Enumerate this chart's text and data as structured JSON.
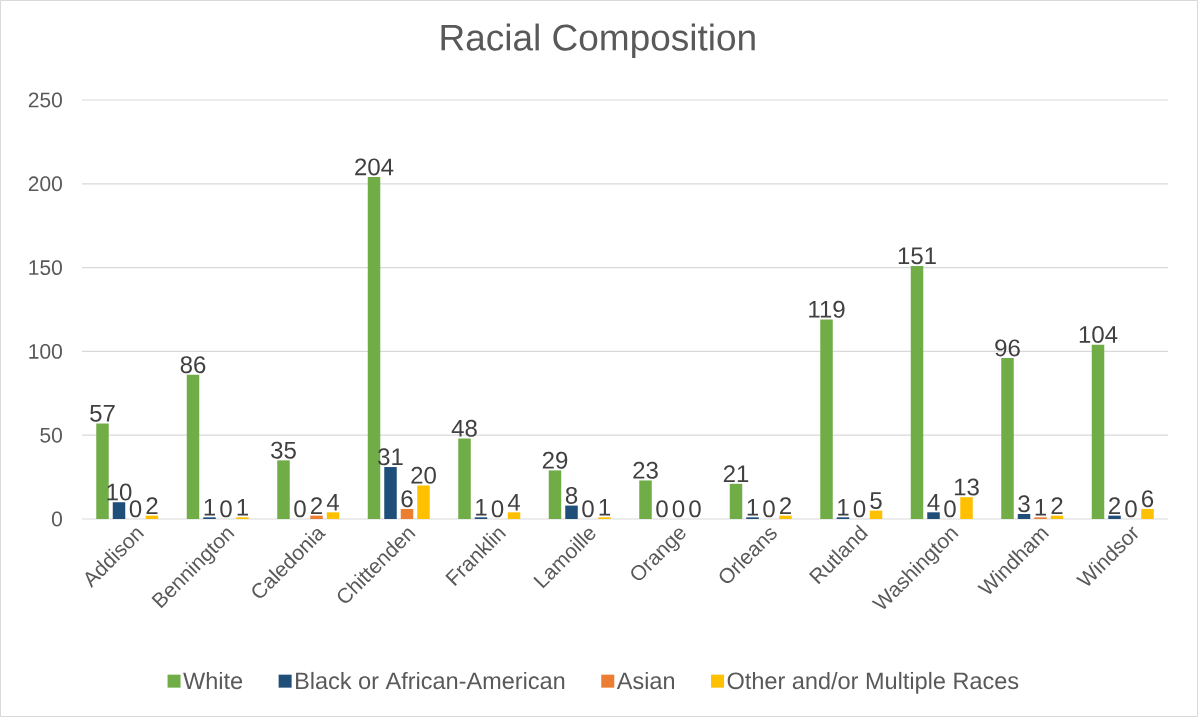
{
  "chart_data": {
    "type": "bar",
    "title": "Racial Composition",
    "categories": [
      "Addison",
      "Bennington",
      "Caledonia",
      "Chittenden",
      "Franklin",
      "Lamoille",
      "Orange",
      "Orleans",
      "Rutland",
      "Washington",
      "Windham",
      "Windsor"
    ],
    "series": [
      {
        "name": "White",
        "color": "#70ad47",
        "values": [
          57,
          86,
          35,
          204,
          48,
          29,
          23,
          21,
          119,
          151,
          96,
          104
        ]
      },
      {
        "name": "Black or African-American",
        "color": "#1f4e79",
        "values": [
          10,
          1,
          0,
          31,
          1,
          8,
          0,
          1,
          1,
          4,
          3,
          2
        ]
      },
      {
        "name": "Asian",
        "color": "#ed7d31",
        "values": [
          0,
          0,
          2,
          6,
          0,
          0,
          0,
          0,
          0,
          0,
          1,
          0
        ]
      },
      {
        "name": "Other and/or Multiple Races",
        "color": "#ffc000",
        "values": [
          2,
          1,
          4,
          20,
          4,
          1,
          0,
          2,
          5,
          13,
          2,
          6
        ]
      }
    ],
    "ylim": [
      0,
      250
    ],
    "yticks": [
      0,
      50,
      100,
      150,
      200,
      250
    ],
    "grid": "y",
    "legend": "bottom",
    "data_labels": true
  }
}
